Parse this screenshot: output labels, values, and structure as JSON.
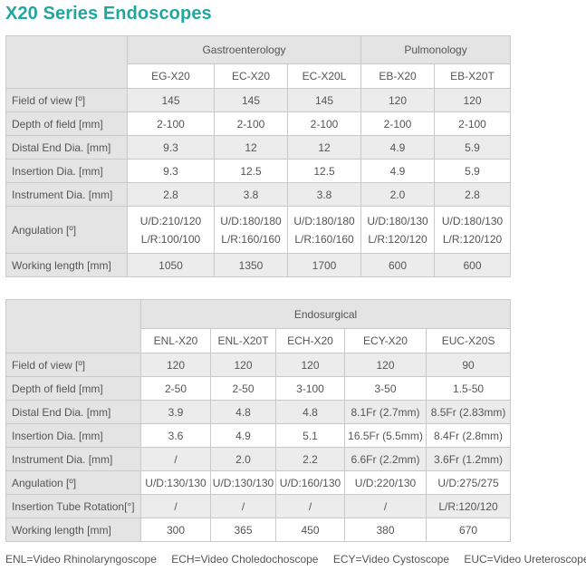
{
  "title": "X20 Series Endoscopes",
  "table1": {
    "groups": [
      "Gastroenterology",
      "Pulmonology"
    ],
    "models": [
      "EG-X20",
      "EC-X20",
      "EC-X20L",
      "EB-X20",
      "EB-X20T"
    ],
    "rows": [
      {
        "label": "Field of view [º]",
        "values": [
          "145",
          "145",
          "145",
          "120",
          "120"
        ]
      },
      {
        "label": "Depth of field [mm]",
        "values": [
          "2-100",
          "2-100",
          "2-100",
          "2-100",
          "2-100"
        ]
      },
      {
        "label": "Distal End Dia. [mm]",
        "values": [
          "9.3",
          "12",
          "12",
          "4.9",
          "5.9"
        ]
      },
      {
        "label": "Insertion Dia. [mm]",
        "values": [
          "9.3",
          "12.5",
          "12.5",
          "4.9",
          "5.9"
        ]
      },
      {
        "label": "Instrument Dia. [mm]",
        "values": [
          "2.8",
          "3.8",
          "3.8",
          "2.0",
          "2.8"
        ]
      }
    ],
    "angulation": {
      "label": "Angulation [º]",
      "ud": [
        "U/D:210/120",
        "U/D:180/180",
        "U/D:180/180",
        "U/D:180/130",
        "U/D:180/130"
      ],
      "lr": [
        "L/R:100/100",
        "L/R:160/160",
        "L/R:160/160",
        "L/R:120/120",
        "L/R:120/120"
      ]
    },
    "working_length": {
      "label": "Working length [mm]",
      "values": [
        "1050",
        "1350",
        "1700",
        "600",
        "600"
      ]
    }
  },
  "table2": {
    "group": "Endosurgical",
    "models": [
      "ENL-X20",
      "ENL-X20T",
      "ECH-X20",
      "ECY-X20",
      "EUC-X20S"
    ],
    "rows": [
      {
        "label": "Field of view [º]",
        "values": [
          "120",
          "120",
          "120",
          "120",
          "90"
        ]
      },
      {
        "label": "Depth of field [mm]",
        "values": [
          "2-50",
          "2-50",
          "3-100",
          "3-50",
          "1.5-50"
        ]
      },
      {
        "label": "Distal End Dia. [mm]",
        "values": [
          "3.9",
          "4.8",
          "4.8",
          "8.1Fr (2.7mm)",
          "8.5Fr (2.83mm)"
        ]
      },
      {
        "label": "Insertion Dia. [mm]",
        "values": [
          "3.6",
          "4.9",
          "5.1",
          "16.5Fr (5.5mm)",
          "8.4Fr (2.8mm)"
        ]
      },
      {
        "label": "Instrument Dia. [mm]",
        "values": [
          "/",
          "2.0",
          "2.2",
          "6.6Fr (2.2mm)",
          "3.6Fr (1.2mm)"
        ]
      },
      {
        "label": "Angulation [º]",
        "values": [
          "U/D:130/130",
          "U/D:130/130",
          "U/D:160/130",
          "U/D:220/130",
          "U/D:275/275"
        ]
      },
      {
        "label": "Insertion Tube Rotation[°]",
        "values": [
          "/",
          "/",
          "/",
          "/",
          "L/R:120/120"
        ]
      },
      {
        "label": "Working length [mm]",
        "values": [
          "300",
          "365",
          "450",
          "380",
          "670"
        ]
      }
    ]
  },
  "legend": [
    "ENL=Video Rhinolaryngoscope",
    "ECH=Video Choledochoscope",
    "ECY=Video Cystoscope",
    "EUC=Video Ureteroscope"
  ]
}
